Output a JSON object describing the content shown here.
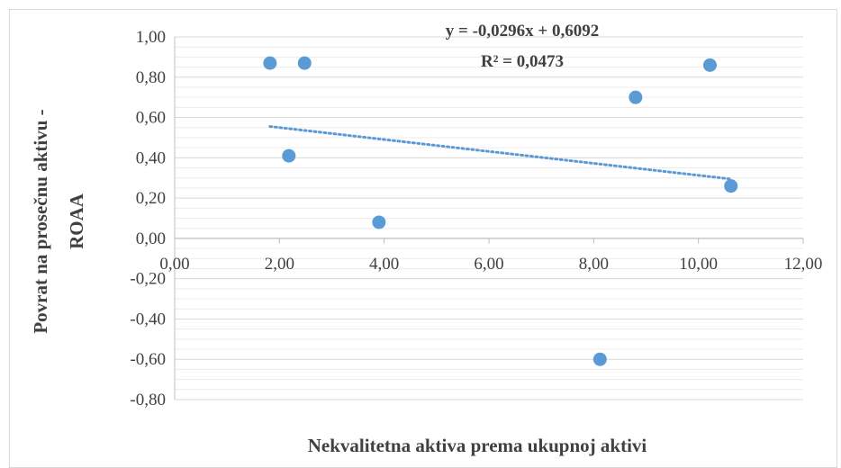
{
  "chart_data": {
    "type": "scatter",
    "xlabel": "Nekvalitetna aktiva prema ukupnoj aktivi",
    "ylabel_lines": [
      "Povrat na prosečnu aktivu  -",
      "ROAA"
    ],
    "xlim": [
      0,
      12
    ],
    "ylim": [
      -0.8,
      1.0
    ],
    "x_ticks": [
      0,
      2,
      4,
      6,
      8,
      10,
      12
    ],
    "x_tick_labels": [
      "0,00",
      "2,00",
      "4,00",
      "6,00",
      "8,00",
      "10,00",
      "12,00"
    ],
    "y_ticks": [
      1.0,
      0.8,
      0.6,
      0.4,
      0.2,
      0.0,
      -0.2,
      -0.4,
      -0.6,
      -0.8
    ],
    "y_tick_labels": [
      "1,00",
      "0,80",
      "0,60",
      "0,40",
      "0,20",
      "0,00",
      "-0,20",
      "-0,40",
      "-0,60",
      "-0,80"
    ],
    "grid": "horizontal-major-and-minor",
    "points": [
      {
        "x": 1.82,
        "y": 0.87
      },
      {
        "x": 2.48,
        "y": 0.87
      },
      {
        "x": 2.18,
        "y": 0.41
      },
      {
        "x": 3.9,
        "y": 0.08
      },
      {
        "x": 8.12,
        "y": -0.6
      },
      {
        "x": 8.8,
        "y": 0.7
      },
      {
        "x": 10.22,
        "y": 0.86
      },
      {
        "x": 10.62,
        "y": 0.26
      }
    ],
    "trendline": {
      "type": "linear",
      "slope": -0.0296,
      "intercept": 0.6092,
      "x_range": [
        1.82,
        10.62
      ],
      "equation_label": "y = -0,0296x + 0,6092",
      "r2_label": "R² = 0,0473"
    },
    "colors": {
      "marker": "#5b9bd5",
      "trendline": "#5b9bd5",
      "major_grid": "#d9d9d9",
      "minor_grid": "#ececec",
      "axis": "#bfbfbf",
      "text": "#404040"
    }
  }
}
